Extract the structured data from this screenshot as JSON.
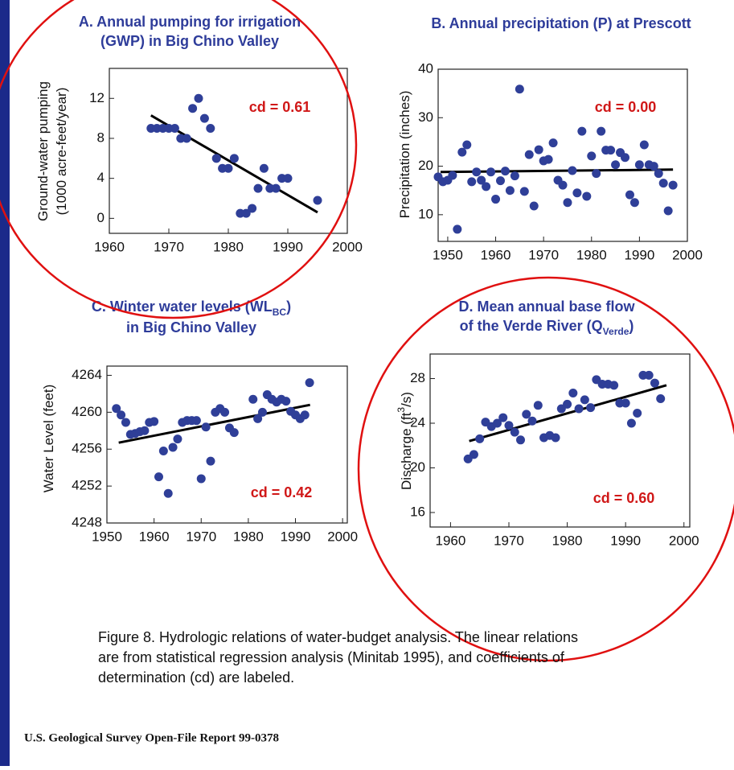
{
  "chart_data": [
    {
      "type": "scatter",
      "title": [
        [
          {
            "text": "A. Annual pumping for irrigation"
          }
        ],
        [
          {
            "text": "(GWP) in Big Chino Valley"
          }
        ]
      ],
      "y_label": [
        [
          {
            "text": "Ground-water pumping"
          }
        ],
        [
          {
            "text": "(1000 acre-feet/year)"
          }
        ]
      ],
      "annotation": "cd = 0.61",
      "color": "#2f3f98",
      "x": [
        1967,
        1968,
        1969,
        1970,
        1971,
        1972,
        1973,
        1974,
        1975,
        1976,
        1977,
        1978,
        1979,
        1980,
        1981,
        1982,
        1983,
        1984,
        1985,
        1986,
        1987,
        1988,
        1989,
        1990,
        1995
      ],
      "values": [
        9,
        9,
        9,
        9,
        9,
        8,
        8,
        11,
        12,
        10,
        9,
        6,
        5,
        5,
        6,
        0.5,
        0.5,
        1,
        3,
        5,
        3,
        3,
        4,
        4,
        1.8
      ],
      "trend": {
        "x": [
          1967,
          1995
        ],
        "y": [
          10.3,
          0.6
        ]
      },
      "xlim": [
        1960,
        2000
      ],
      "xticks": [
        1960,
        1970,
        1980,
        1990,
        2000
      ],
      "ylim": [
        -1.5,
        15
      ],
      "yticks": [
        0,
        4,
        8,
        12
      ]
    },
    {
      "type": "scatter",
      "title": [
        [
          {
            "text": "B. Annual precipitation (P) at Prescott"
          }
        ]
      ],
      "y_label": [
        [
          {
            "text": "Precipitation (inches)"
          }
        ]
      ],
      "annotation": "cd = 0.00",
      "color": "#2f3f98",
      "x": [
        1948,
        1949,
        1950,
        1951,
        1952,
        1953,
        1954,
        1955,
        1956,
        1957,
        1958,
        1959,
        1960,
        1961,
        1962,
        1963,
        1964,
        1965,
        1966,
        1967,
        1968,
        1969,
        1970,
        1971,
        1972,
        1973,
        1974,
        1975,
        1976,
        1977,
        1978,
        1979,
        1980,
        1981,
        1982,
        1983,
        1984,
        1985,
        1986,
        1987,
        1988,
        1989,
        1990,
        1991,
        1992,
        1993,
        1994,
        1995,
        1996,
        1997
      ],
      "values": [
        17.8,
        16.8,
        17.1,
        18.1,
        7.0,
        22.9,
        24.4,
        16.8,
        18.8,
        17.1,
        15.8,
        18.8,
        13.2,
        17.0,
        19.0,
        15.0,
        18.0,
        35.9,
        14.8,
        22.4,
        11.8,
        23.4,
        21.1,
        21.4,
        24.8,
        17.1,
        16.1,
        12.5,
        19.1,
        14.5,
        27.2,
        13.8,
        22.1,
        18.5,
        27.2,
        23.3,
        23.3,
        20.3,
        22.8,
        21.8,
        14.1,
        12.5,
        20.3,
        24.4,
        20.3,
        20.0,
        18.5,
        16.5,
        10.8,
        16.1
      ],
      "trend": {
        "x": [
          1948.5,
          1997
        ],
        "y": [
          18.8,
          19.3
        ]
      },
      "xlim": [
        1948,
        2000
      ],
      "xticks": [
        1950,
        1960,
        1970,
        1980,
        1990,
        2000
      ],
      "ylim": [
        4.5,
        40
      ],
      "yticks": [
        10,
        20,
        30,
        40
      ]
    },
    {
      "type": "scatter",
      "title": [
        [
          {
            "text": "C. Winter water levels (WL"
          },
          {
            "text": "BC",
            "sub": true
          },
          {
            "text": ")"
          }
        ],
        [
          {
            "text": "in Big Chino Valley"
          }
        ]
      ],
      "y_label": [
        [
          {
            "text": "Water Level (feet)"
          }
        ]
      ],
      "annotation": "cd = 0.42",
      "color": "#2f3f98",
      "x": [
        1952,
        1953,
        1954,
        1955,
        1956,
        1957,
        1958,
        1959,
        1960,
        1961,
        1962,
        1963,
        1964,
        1965,
        1966,
        1967,
        1968,
        1969,
        1970,
        1971,
        1972,
        1973,
        1974,
        1975,
        1976,
        1977,
        1981,
        1982,
        1983,
        1984,
        1985,
        1986,
        1987,
        1988,
        1989,
        1990,
        1991,
        1992,
        1993
      ],
      "values": [
        4260.4,
        4259.7,
        4258.9,
        4257.6,
        4257.7,
        4257.9,
        4258,
        4258.9,
        4259,
        4253,
        4255.8,
        4251.2,
        4256.2,
        4257.1,
        4258.9,
        4259.1,
        4259.1,
        4259.1,
        4252.8,
        4258.4,
        4254.7,
        4260,
        4260.4,
        4260,
        4258.3,
        4257.8,
        4261.4,
        4259.3,
        4260,
        4261.9,
        4261.4,
        4261.1,
        4261.4,
        4261.2,
        4260.1,
        4259.7,
        4259.3,
        4259.7,
        4263.2
      ],
      "trend": {
        "x": [
          1952.5,
          1993.1
        ],
        "y": [
          4256.7,
          4260.8
        ]
      },
      "xlim": [
        1950,
        2001
      ],
      "xticks": [
        1950,
        1960,
        1970,
        1980,
        1990,
        2000
      ],
      "ylim": [
        4248,
        4265
      ],
      "yticks": [
        4248,
        4252,
        4256,
        4260,
        4264
      ]
    },
    {
      "type": "scatter",
      "title": [
        [
          {
            "text": "D. Mean annual base flow"
          }
        ],
        [
          {
            "text": "of the Verde River (Q"
          },
          {
            "text": "Verde",
            "sub": true
          },
          {
            "text": ")"
          }
        ]
      ],
      "y_label": [
        [
          {
            "text": "Discharge (ft"
          },
          {
            "text": "3",
            "sup": true
          },
          {
            "text": "/s)"
          }
        ]
      ],
      "annotation": "cd = 0.60",
      "color": "#2f3f98",
      "x": [
        1963,
        1964,
        1965,
        1966,
        1967,
        1968,
        1969,
        1970,
        1971,
        1972,
        1973,
        1974,
        1975,
        1976,
        1977,
        1978,
        1979,
        1980,
        1981,
        1982,
        1983,
        1984,
        1985,
        1986,
        1987,
        1988,
        1989,
        1990,
        1991,
        1992,
        1993,
        1994,
        1995,
        1996
      ],
      "values": [
        20.8,
        21.2,
        22.6,
        24.1,
        23.7,
        24,
        24.5,
        23.8,
        23.2,
        22.5,
        24.8,
        24.2,
        25.6,
        22.7,
        22.9,
        22.7,
        25.3,
        25.7,
        26.7,
        25.3,
        26.1,
        25.4,
        27.9,
        27.5,
        27.5,
        27.4,
        25.8,
        25.8,
        24,
        24.9,
        28.3,
        28.3,
        27.6,
        26.2
      ],
      "trend": {
        "x": [
          1963.2,
          1997
        ],
        "y": [
          22.4,
          27.4
        ]
      },
      "xlim": [
        1956.5,
        2001
      ],
      "xticks": [
        1960,
        1970,
        1980,
        1990,
        2000
      ],
      "ylim": [
        14.7,
        30.2
      ],
      "yticks": [
        16,
        20,
        24,
        28
      ]
    }
  ],
  "caption": [
    "Figure 8.  Hydrologic relations of water-budget analysis. The linear relations",
    "are from statistical regression analysis (Minitab 1995), and coefficients of",
    "determination (cd) are labeled."
  ],
  "footer": "U.S. Geological Survey Open-File Report 99-0378"
}
